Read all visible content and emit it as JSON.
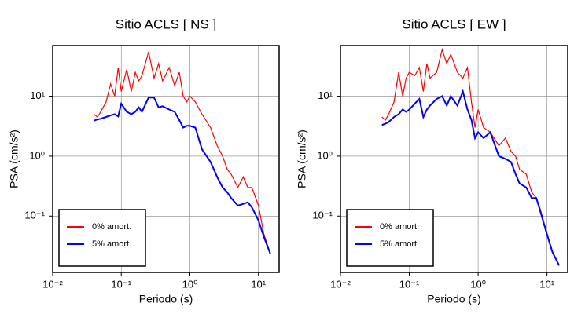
{
  "chart_data": [
    {
      "type": "line",
      "title": "Sitio ACLS [ NS ]",
      "x_label": "Periodo (s)",
      "y_label": "PSA (cm/s²)",
      "x_scale": "log",
      "y_scale": "log",
      "grid": true,
      "legend": "lower left",
      "xlim": [
        0.01,
        20
      ],
      "ylim": [
        0.0115,
        70
      ],
      "xticks": [
        {
          "value": 0.01,
          "label": "10⁻²"
        },
        {
          "value": 0.1,
          "label": "10⁻¹"
        },
        {
          "value": 1,
          "label": "10⁰"
        },
        {
          "value": 10,
          "label": "10¹"
        }
      ],
      "yticks": [
        {
          "value": 0.1,
          "label": "10⁻¹"
        },
        {
          "value": 1,
          "label": "10⁰"
        },
        {
          "value": 10,
          "label": "10¹"
        }
      ],
      "x": [
        0.04,
        0.045,
        0.05,
        0.06,
        0.07,
        0.08,
        0.09,
        0.1,
        0.12,
        0.14,
        0.16,
        0.18,
        0.2,
        0.25,
        0.3,
        0.35,
        0.4,
        0.5,
        0.6,
        0.7,
        0.8,
        0.9,
        1,
        1.2,
        1.5,
        2,
        2.5,
        3,
        3.5,
        4,
        5,
        6,
        7,
        8,
        10,
        12,
        15
      ],
      "series": [
        {
          "name": "0% amort.",
          "color": "#ff0000",
          "values": [
            5,
            4.5,
            5.5,
            8,
            16,
            10,
            30,
            12,
            28,
            12,
            25,
            18,
            22,
            55,
            20,
            35,
            18,
            30,
            15,
            25,
            10,
            8,
            10,
            8,
            5,
            3,
            1.5,
            1.0,
            0.6,
            0.5,
            0.3,
            0.45,
            0.3,
            0.3,
            0.15,
            0.05,
            0.023
          ]
        },
        {
          "name": "5% amort.",
          "color": "#0000ff",
          "values": [
            3.9,
            4.1,
            4.2,
            4.5,
            4.8,
            5.0,
            4.6,
            7.5,
            5.5,
            5.0,
            5.5,
            6.5,
            5.5,
            9.5,
            9.5,
            6.5,
            6.8,
            6.0,
            5.5,
            4.0,
            3.0,
            3.2,
            3.2,
            3.0,
            1.3,
            0.8,
            0.45,
            0.3,
            0.25,
            0.2,
            0.15,
            0.16,
            0.17,
            0.14,
            0.085,
            0.045,
            0.023
          ]
        }
      ]
    },
    {
      "type": "line",
      "title": "Sitio ACLS [ EW ]",
      "x_label": "Periodo (s)",
      "y_label": "PSA (cm/s²)",
      "x_scale": "log",
      "y_scale": "log",
      "grid": true,
      "legend": "lower left",
      "xlim": [
        0.01,
        20
      ],
      "ylim": [
        0.0115,
        70
      ],
      "xticks": [
        {
          "value": 0.01,
          "label": "10⁻²"
        },
        {
          "value": 0.1,
          "label": "10⁻¹"
        },
        {
          "value": 1,
          "label": "10⁰"
        },
        {
          "value": 10,
          "label": "10¹"
        }
      ],
      "yticks": [
        {
          "value": 0.1,
          "label": "10⁻¹"
        },
        {
          "value": 1,
          "label": "10⁰"
        },
        {
          "value": 10,
          "label": "10¹"
        }
      ],
      "x": [
        0.04,
        0.045,
        0.05,
        0.06,
        0.07,
        0.08,
        0.09,
        0.1,
        0.12,
        0.14,
        0.16,
        0.18,
        0.2,
        0.25,
        0.3,
        0.35,
        0.4,
        0.5,
        0.6,
        0.7,
        0.8,
        0.9,
        1,
        1.2,
        1.5,
        2,
        2.5,
        3,
        3.5,
        4,
        5,
        6,
        7,
        8,
        10,
        12,
        15
      ],
      "series": [
        {
          "name": "0% amort.",
          "color": "#ff0000",
          "values": [
            4.5,
            4,
            5,
            8,
            25,
            10,
            20,
            25,
            22,
            30,
            12,
            35,
            20,
            25,
            60,
            35,
            50,
            25,
            20,
            30,
            8,
            3,
            6,
            3,
            2.5,
            1.5,
            2,
            1.2,
            1,
            0.6,
            0.5,
            0.25,
            0.2,
            0.13,
            0.05,
            0.025,
            0.015
          ]
        },
        {
          "name": "5% amort.",
          "color": "#0000ff",
          "values": [
            3.3,
            3.5,
            3.7,
            4.5,
            5,
            6,
            5.5,
            6,
            7.5,
            9,
            4.5,
            6,
            7,
            9,
            10,
            7,
            10,
            7,
            12,
            6,
            4,
            2,
            2.5,
            2,
            2.5,
            1,
            0.9,
            0.8,
            0.5,
            0.35,
            0.3,
            0.2,
            0.2,
            0.12,
            0.05,
            0.025,
            0.015
          ]
        }
      ]
    }
  ]
}
